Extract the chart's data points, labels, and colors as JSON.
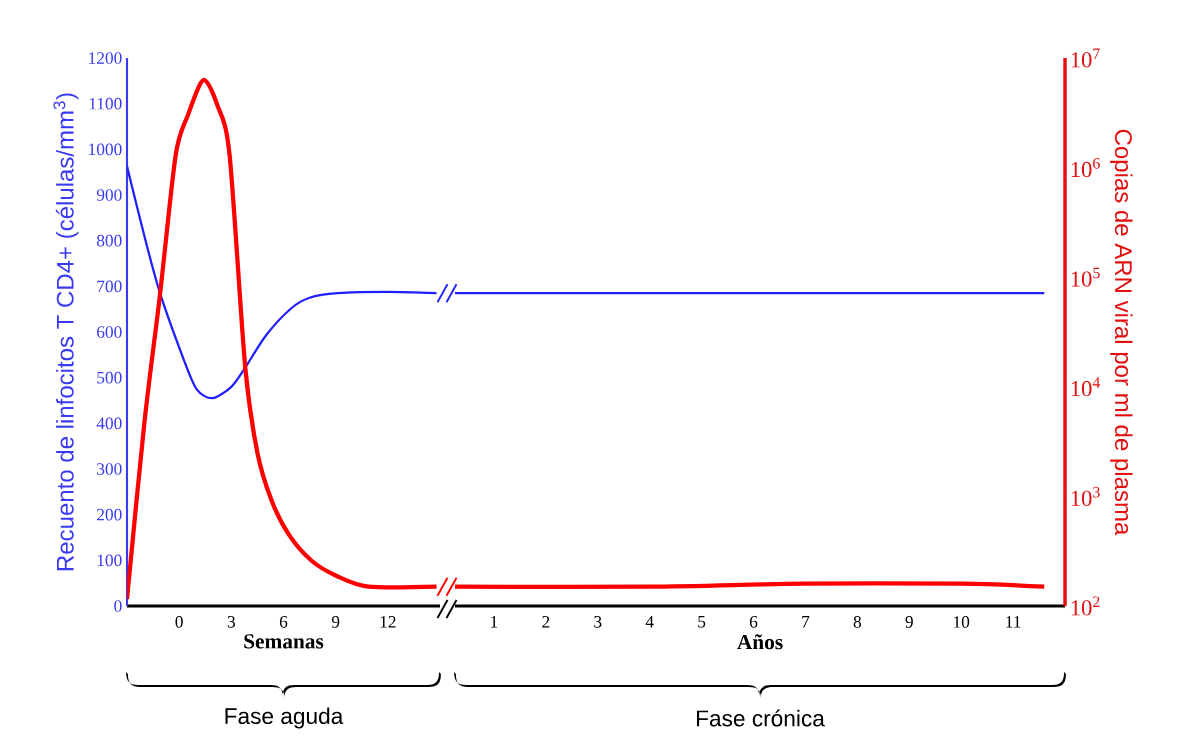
{
  "chart_data": [
    {
      "type": "line",
      "xlabel": "Semanas",
      "ylabel": "Recuento de linfocitos T CD4+ (células/mm$^{3}$)",
      "xlim": [
        -3,
        15
      ],
      "xticks": [
        0,
        3,
        6,
        9,
        12
      ],
      "ylim": [
        0,
        1200
      ],
      "yticks": [
        0,
        100,
        200,
        300,
        400,
        500,
        600,
        700,
        800,
        900,
        1000,
        1100,
        1200
      ],
      "y2lim": [
        100,
        10000000
      ],
      "log": "y2",
      "annotations": [
        "Fase aguda"
      ],
      "series": [
        {
          "color": "#2020ff",
          "x": [
            -3,
            -2,
            -1.1,
            0.23,
            1,
            1.9,
            3,
            3.8,
            5,
            6.45,
            7.5,
            9.1,
            12,
            14.8
          ],
          "values": [
            963,
            810,
            685,
            543,
            475,
            455,
            480,
            522,
            593,
            652,
            675,
            685,
            688,
            685
          ]
        },
        {
          "color": "#ff0000",
          "axis": "y2",
          "x": [
            -3,
            -2,
            -1.1,
            -0.2,
            0.5,
            1.4,
            2.2,
            2.9,
            3.8,
            4.5,
            5.3,
            6.3,
            7.6,
            9,
            10.9,
            14.8
          ],
          "values": [
            116,
            4700,
            70000,
            1300000,
            3000000,
            6300000,
            3700000,
            1300000,
            15000,
            2500,
            930,
            450,
            260,
            190,
            150,
            150
          ]
        }
      ]
    },
    {
      "type": "line",
      "xlabel": "Años",
      "y2label": "Copias de ARN viral por ml de plasma",
      "xlim": [
        0.25,
        12
      ],
      "xticks": [
        1,
        2,
        3,
        4,
        5,
        6,
        7,
        8,
        9,
        10,
        11
      ],
      "ylim": [
        0,
        1200
      ],
      "y2lim": [
        100,
        10000000
      ],
      "log": "y2",
      "annotations": [
        "Fase crónica"
      ],
      "y2ticks": [
        {
          "value": 100,
          "label": "10$^{2}$"
        },
        {
          "value": 1000,
          "label": "10$^{3}$"
        },
        {
          "value": 10000,
          "label": "10$^{4}$"
        },
        {
          "value": 100000,
          "label": "10$^{5}$"
        },
        {
          "value": 1000000,
          "label": "10$^{6}$"
        },
        {
          "value": 10000000,
          "label": "10$^{7}$"
        }
      ],
      "series": [
        {
          "color": "#2020ff",
          "x": [
            0.25,
            11.6
          ],
          "values": [
            685,
            685
          ]
        },
        {
          "color": "#ff0000",
          "axis": "y2",
          "x": [
            0.25,
            4,
            7,
            10,
            11.6
          ],
          "values": [
            150,
            150,
            160,
            160,
            150
          ]
        }
      ]
    }
  ]
}
